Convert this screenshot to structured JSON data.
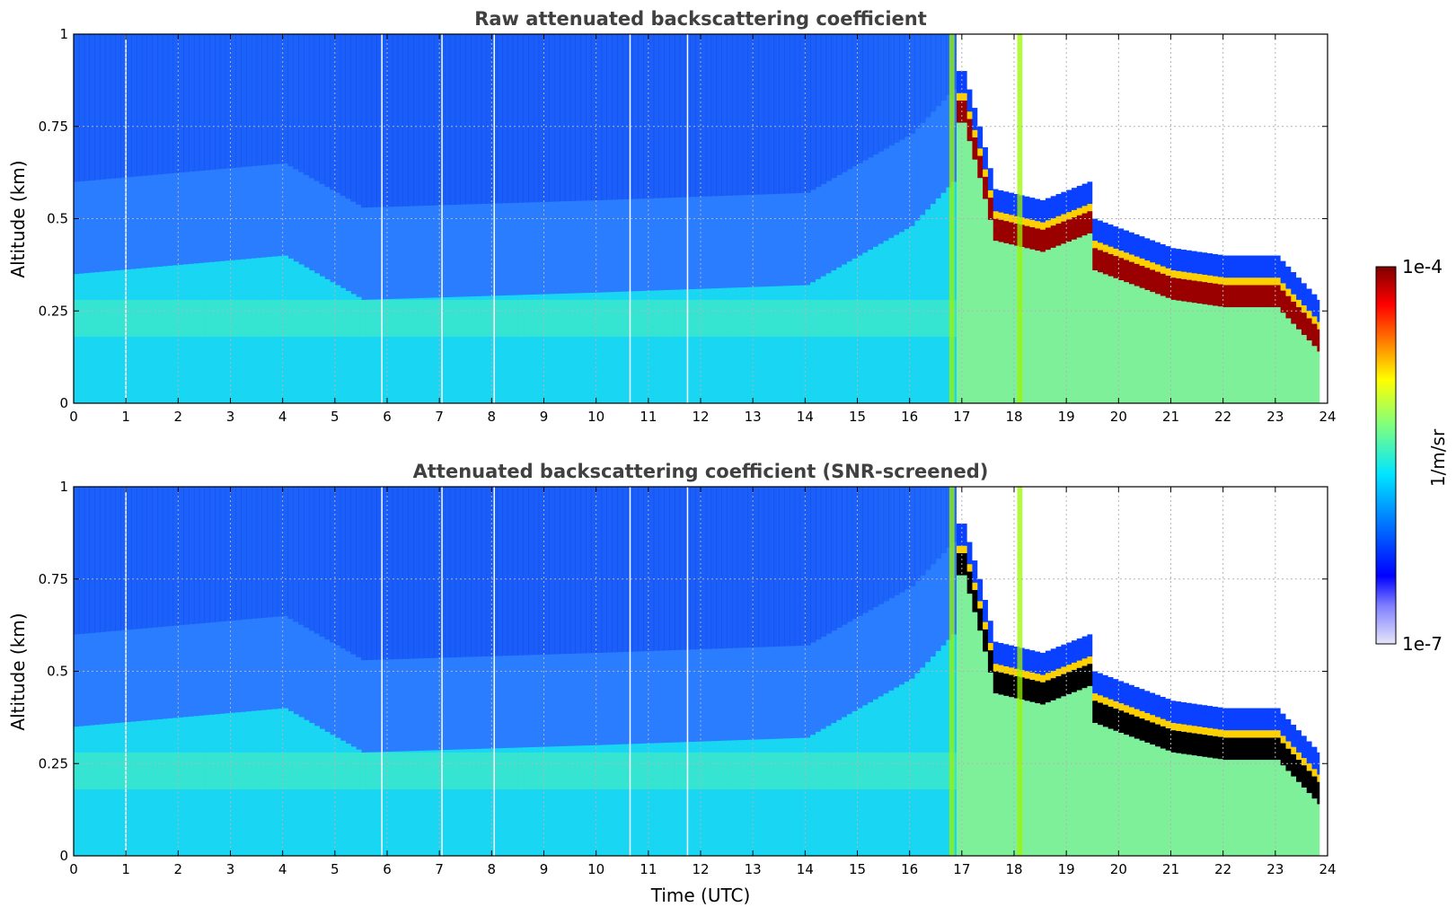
{
  "chart_data": [
    {
      "type": "heatmap",
      "title": "Raw attenuated backscattering coefficient",
      "xlabel": "",
      "ylabel": "Altitude (km)",
      "xlim": [
        0,
        24
      ],
      "ylim": [
        0,
        1
      ],
      "xticks": [
        "0",
        "1",
        "2",
        "3",
        "4",
        "5",
        "6",
        "7",
        "8",
        "9",
        "10",
        "11",
        "12",
        "13",
        "14",
        "15",
        "16",
        "17",
        "18",
        "19",
        "20",
        "21",
        "22",
        "23",
        "24"
      ],
      "yticks": [
        "0",
        "0.25",
        "0.5",
        "0.75",
        "1"
      ],
      "grid": true,
      "data_gaps_utc": [
        1.0,
        5.9,
        7.05,
        8.05,
        10.65,
        11.75
      ],
      "boundary_layer_top_km": [
        {
          "t": 0,
          "h": 0.35
        },
        {
          "t": 4,
          "h": 0.4
        },
        {
          "t": 5.5,
          "h": 0.28
        },
        {
          "t": 10,
          "h": 0.3
        },
        {
          "t": 14,
          "h": 0.32
        },
        {
          "t": 16,
          "h": 0.48
        },
        {
          "t": 16.8,
          "h": 0.6
        }
      ],
      "cloud_base_km": [
        {
          "t": 17.0,
          "h": 0.8
        },
        {
          "t": 17.3,
          "h": 0.65
        },
        {
          "t": 17.6,
          "h": 0.48
        },
        {
          "t": 18.5,
          "h": 0.45
        },
        {
          "t": 19.4,
          "h": 0.5
        },
        {
          "t": 19.5,
          "h": 0.4
        },
        {
          "t": 21,
          "h": 0.32
        },
        {
          "t": 22,
          "h": 0.3
        },
        {
          "t": 23,
          "h": 0.3
        },
        {
          "t": 23.8,
          "h": 0.18
        }
      ]
    },
    {
      "type": "heatmap",
      "title": "Attenuated backscattering coefficient (SNR-screened)",
      "xlabel": "Time (UTC)",
      "ylabel": "Altitude (km)",
      "xlim": [
        0,
        24
      ],
      "ylim": [
        0,
        1
      ],
      "xticks": [
        "0",
        "1",
        "2",
        "3",
        "4",
        "5",
        "6",
        "7",
        "8",
        "9",
        "10",
        "11",
        "12",
        "13",
        "14",
        "15",
        "16",
        "17",
        "18",
        "19",
        "20",
        "21",
        "22",
        "23",
        "24"
      ],
      "yticks": [
        "0",
        "0.25",
        "0.5",
        "0.75",
        "1"
      ],
      "grid": true,
      "data_gaps_utc": [
        1.0,
        5.9,
        7.05,
        8.05,
        10.65,
        11.75
      ],
      "boundary_layer_top_km": [
        {
          "t": 0,
          "h": 0.35
        },
        {
          "t": 4,
          "h": 0.4
        },
        {
          "t": 5.5,
          "h": 0.28
        },
        {
          "t": 10,
          "h": 0.3
        },
        {
          "t": 14,
          "h": 0.32
        },
        {
          "t": 16,
          "h": 0.48
        },
        {
          "t": 16.8,
          "h": 0.6
        }
      ],
      "cloud_base_km": [
        {
          "t": 17.0,
          "h": 0.8
        },
        {
          "t": 17.3,
          "h": 0.65
        },
        {
          "t": 17.6,
          "h": 0.48
        },
        {
          "t": 18.5,
          "h": 0.45
        },
        {
          "t": 19.4,
          "h": 0.5
        },
        {
          "t": 19.5,
          "h": 0.4
        },
        {
          "t": 21,
          "h": 0.32
        },
        {
          "t": 22,
          "h": 0.3
        },
        {
          "t": 23,
          "h": 0.3
        },
        {
          "t": 23.8,
          "h": 0.18
        }
      ]
    }
  ],
  "colorbar": {
    "label": "1/m/sr",
    "max_label": "1e-4",
    "min_label": "1e-7",
    "colors": [
      "#e6e6fa",
      "#0000ff",
      "#0077ff",
      "#00e5ff",
      "#7fff7f",
      "#ffff00",
      "#ff7f00",
      "#ff0000",
      "#7f0000"
    ]
  }
}
